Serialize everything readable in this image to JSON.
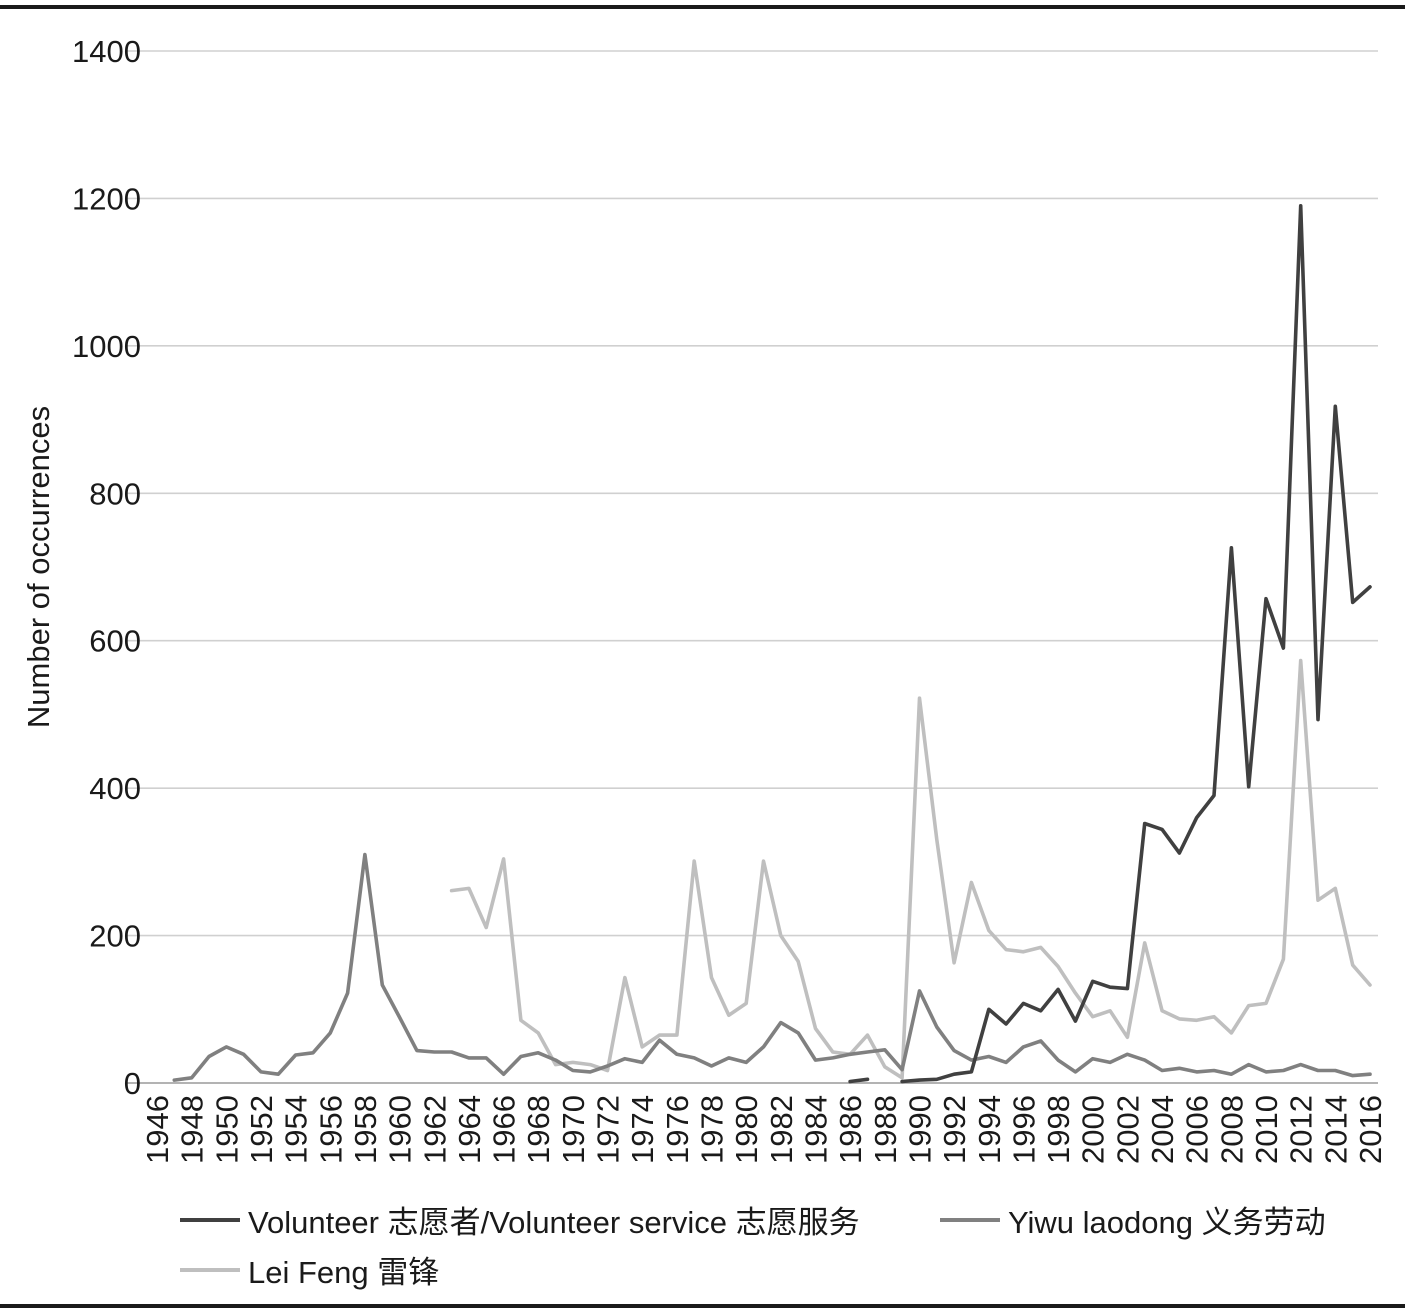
{
  "chart_data": {
    "type": "line",
    "xlabel": "",
    "ylabel": "Number of occurrences",
    "ylim": [
      0,
      1400
    ],
    "yticks": [
      0,
      200,
      400,
      600,
      800,
      1000,
      1200,
      1400
    ],
    "xlim": [
      1946,
      2016
    ],
    "xticks": [
      1946,
      1948,
      1950,
      1952,
      1954,
      1956,
      1958,
      1960,
      1962,
      1964,
      1966,
      1968,
      1970,
      1972,
      1974,
      1976,
      1978,
      1980,
      1982,
      1984,
      1986,
      1988,
      1990,
      1992,
      1994,
      1996,
      1998,
      2000,
      2002,
      2004,
      2006,
      2008,
      2010,
      2012,
      2014,
      2016
    ],
    "grid": true,
    "legend_position": "bottom",
    "series": [
      {
        "name": "Volunteer 志愿者/Volunteer service 志愿服务",
        "color": "#404040",
        "points": [
          [
            1986,
            2
          ],
          [
            1987,
            5
          ],
          null,
          [
            1989,
            2
          ],
          [
            1990,
            4
          ],
          [
            1991,
            5
          ],
          [
            1992,
            12
          ],
          [
            1993,
            15
          ],
          [
            1994,
            100
          ],
          [
            1995,
            80
          ],
          [
            1996,
            108
          ],
          [
            1997,
            98
          ],
          [
            1998,
            127
          ],
          [
            1999,
            84
          ],
          [
            2000,
            138
          ],
          [
            2001,
            130
          ],
          [
            2002,
            128
          ],
          [
            2003,
            352
          ],
          [
            2004,
            344
          ],
          [
            2005,
            312
          ],
          [
            2006,
            360
          ],
          [
            2007,
            390
          ],
          [
            2008,
            726
          ],
          [
            2009,
            402
          ],
          [
            2010,
            657
          ],
          [
            2011,
            590
          ],
          [
            2012,
            1190
          ],
          [
            2013,
            493
          ],
          [
            2014,
            918
          ],
          [
            2015,
            652
          ],
          [
            2016,
            673
          ]
        ]
      },
      {
        "name": "Yiwu laodong 义务劳动",
        "color": "#808080",
        "points": [
          [
            1947,
            4
          ],
          [
            1948,
            7
          ],
          [
            1949,
            36
          ],
          [
            1950,
            49
          ],
          [
            1951,
            39
          ],
          [
            1952,
            15
          ],
          [
            1953,
            12
          ],
          [
            1954,
            38
          ],
          [
            1955,
            41
          ],
          [
            1956,
            68
          ],
          [
            1957,
            122
          ],
          [
            1958,
            310
          ],
          [
            1959,
            133
          ],
          [
            1960,
            89
          ],
          [
            1961,
            44
          ],
          [
            1962,
            42
          ],
          [
            1963,
            42
          ],
          [
            1964,
            34
          ],
          [
            1965,
            34
          ],
          [
            1966,
            12
          ],
          [
            1967,
            36
          ],
          [
            1968,
            41
          ],
          [
            1969,
            31
          ],
          [
            1970,
            17
          ],
          [
            1971,
            15
          ],
          [
            1972,
            23
          ],
          [
            1973,
            33
          ],
          [
            1974,
            28
          ],
          [
            1975,
            58
          ],
          [
            1976,
            39
          ],
          [
            1977,
            34
          ],
          [
            1978,
            23
          ],
          [
            1979,
            34
          ],
          [
            1980,
            28
          ],
          [
            1981,
            49
          ],
          [
            1982,
            82
          ],
          [
            1983,
            68
          ],
          [
            1984,
            31
          ],
          [
            1985,
            34
          ],
          [
            1986,
            39
          ],
          [
            1987,
            42
          ],
          [
            1988,
            45
          ],
          [
            1989,
            18
          ],
          [
            1990,
            125
          ],
          [
            1991,
            76
          ],
          [
            1992,
            44
          ],
          [
            1993,
            31
          ],
          [
            1994,
            36
          ],
          [
            1995,
            28
          ],
          [
            1996,
            49
          ],
          [
            1997,
            57
          ],
          [
            1998,
            31
          ],
          [
            1999,
            15
          ],
          [
            2000,
            33
          ],
          [
            2001,
            28
          ],
          [
            2002,
            39
          ],
          [
            2003,
            31
          ],
          [
            2004,
            17
          ],
          [
            2005,
            20
          ],
          [
            2006,
            15
          ],
          [
            2007,
            17
          ],
          [
            2008,
            12
          ],
          [
            2009,
            25
          ],
          [
            2010,
            15
          ],
          [
            2011,
            17
          ],
          [
            2012,
            25
          ],
          [
            2013,
            17
          ],
          [
            2014,
            17
          ],
          [
            2015,
            10
          ],
          [
            2016,
            12
          ]
        ]
      },
      {
        "name": "Lei Feng 雷锋",
        "color": "#bfbfbf",
        "points": [
          [
            1963,
            261
          ],
          [
            1964,
            264
          ],
          [
            1965,
            211
          ],
          [
            1966,
            304
          ],
          [
            1967,
            85
          ],
          [
            1968,
            68
          ],
          [
            1969,
            25
          ],
          [
            1970,
            28
          ],
          [
            1971,
            25
          ],
          [
            1972,
            17
          ],
          [
            1973,
            143
          ],
          [
            1974,
            49
          ],
          [
            1975,
            65
          ],
          [
            1976,
            65
          ],
          [
            1977,
            301
          ],
          [
            1978,
            143
          ],
          [
            1979,
            92
          ],
          [
            1980,
            108
          ],
          [
            1981,
            301
          ],
          [
            1982,
            200
          ],
          [
            1983,
            165
          ],
          [
            1984,
            74
          ],
          [
            1985,
            42
          ],
          [
            1986,
            39
          ],
          [
            1987,
            65
          ],
          [
            1988,
            22
          ],
          [
            1989,
            7
          ],
          [
            1990,
            522
          ],
          [
            1991,
            330
          ],
          [
            1992,
            163
          ],
          [
            1993,
            272
          ],
          [
            1994,
            207
          ],
          [
            1995,
            181
          ],
          [
            1996,
            178
          ],
          [
            1997,
            184
          ],
          [
            1998,
            158
          ],
          [
            1999,
            122
          ],
          [
            2000,
            90
          ],
          [
            2001,
            98
          ],
          [
            2002,
            62
          ],
          [
            2003,
            190
          ],
          [
            2004,
            98
          ],
          [
            2005,
            87
          ],
          [
            2006,
            85
          ],
          [
            2007,
            90
          ],
          [
            2008,
            68
          ],
          [
            2009,
            105
          ],
          [
            2010,
            108
          ],
          [
            2011,
            168
          ],
          [
            2012,
            573
          ],
          [
            2013,
            248
          ],
          [
            2014,
            264
          ],
          [
            2015,
            160
          ],
          [
            2016,
            133
          ]
        ]
      }
    ]
  }
}
